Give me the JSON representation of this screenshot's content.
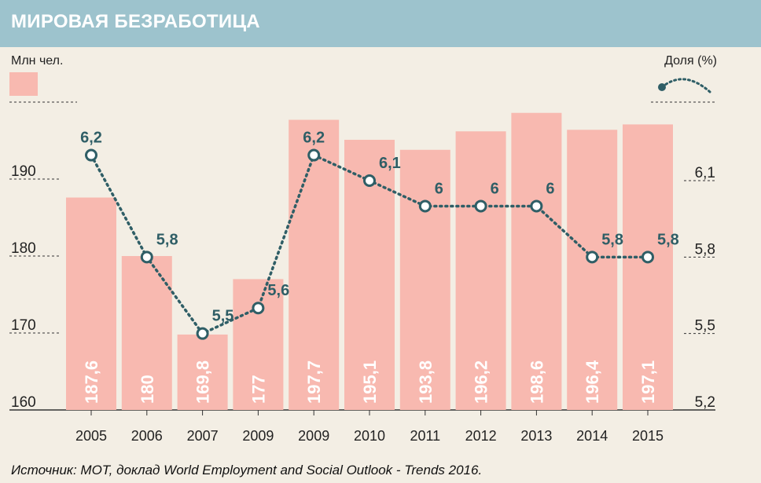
{
  "header": {
    "title": "МИРОВАЯ БЕЗРАБОТИЦА"
  },
  "axis_left": {
    "unit": "Млн чел."
  },
  "axis_right": {
    "unit": "Доля (%)"
  },
  "source": "Источник: МОТ, доклад World Employment and Social Outlook - Trends 2016.",
  "colors": {
    "bar": "#f8b9b0",
    "line": "#2f5e66",
    "header": "#9dc3cd",
    "background": "#f3eee4",
    "bar_label": "#ffffff"
  },
  "chart_data": {
    "type": "bar",
    "title": "МИРОВАЯ БЕЗРАБОТИЦА",
    "categories": [
      "2005",
      "2006",
      "2007",
      "2009",
      "2009",
      "2010",
      "2011",
      "2012",
      "2013",
      "2014",
      "2015"
    ],
    "bar_labels": [
      "187,6",
      "180",
      "169,8",
      "177",
      "197,7",
      "195,1",
      "193,8",
      "196,2",
      "198,6",
      "196,4",
      "197,1"
    ],
    "line_labels": [
      "6,2",
      "5,8",
      "5,5",
      "5,6",
      "6,2",
      "6,1",
      "6",
      "6",
      "6",
      "5,8",
      "5,8"
    ],
    "series": [
      {
        "name": "Млн чел.",
        "type": "bar",
        "axis": "left",
        "values": [
          187.6,
          180,
          169.8,
          177,
          197.7,
          195.1,
          193.8,
          196.2,
          198.6,
          196.4,
          197.1
        ]
      },
      {
        "name": "Доля (%)",
        "type": "line",
        "axis": "right",
        "values": [
          6.2,
          5.8,
          5.5,
          5.6,
          6.2,
          6.1,
          6.0,
          6.0,
          6.0,
          5.8,
          5.8
        ]
      }
    ],
    "y_left": {
      "ticks": [
        "160",
        "170",
        "180",
        "190"
      ],
      "tick_values": [
        160,
        170,
        180,
        190
      ],
      "range": [
        160,
        200
      ]
    },
    "y_right": {
      "ticks": [
        "5,2",
        "5,5",
        "5,8",
        "6,1"
      ],
      "tick_values": [
        5.2,
        5.5,
        5.8,
        6.1
      ],
      "range": [
        5.2,
        6.4
      ]
    }
  }
}
